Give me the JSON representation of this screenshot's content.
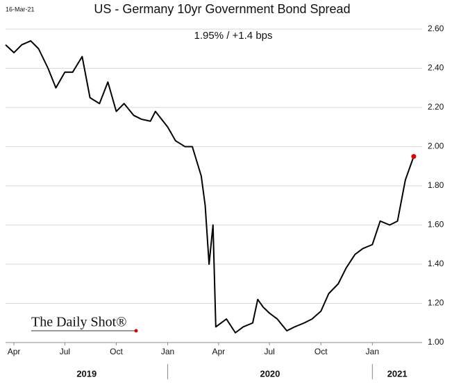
{
  "chart_data": {
    "type": "line",
    "date_stamp": "16-Mar-21",
    "title": "US - Germany 10yr Government Bond Spread",
    "subtitle": "1.95%  /  +1.4 bps",
    "watermark": "The Daily Shot®",
    "x": [
      "2019-03-17",
      "2019-04-01",
      "2019-04-15",
      "2019-05-01",
      "2019-05-15",
      "2019-06-01",
      "2019-06-15",
      "2019-07-01",
      "2019-07-15",
      "2019-08-01",
      "2019-08-15",
      "2019-09-01",
      "2019-09-16",
      "2019-10-01",
      "2019-10-15",
      "2019-11-01",
      "2019-11-15",
      "2019-12-01",
      "2019-12-10",
      "2020-01-01",
      "2020-01-15",
      "2020-02-01",
      "2020-02-14",
      "2020-03-01",
      "2020-03-08",
      "2020-03-15",
      "2020-03-22",
      "2020-03-27",
      "2020-04-15",
      "2020-05-01",
      "2020-05-15",
      "2020-06-01",
      "2020-06-10",
      "2020-06-20",
      "2020-07-01",
      "2020-07-15",
      "2020-08-01",
      "2020-08-15",
      "2020-09-01",
      "2020-09-15",
      "2020-10-01",
      "2020-10-15",
      "2020-11-01",
      "2020-11-15",
      "2020-12-01",
      "2020-12-15",
      "2021-01-01",
      "2021-01-15",
      "2021-02-01",
      "2021-02-15",
      "2021-03-01",
      "2021-03-16"
    ],
    "series": [
      {
        "name": "US - Germany 10yr spread",
        "color": "#000000",
        "values": [
          2.52,
          2.48,
          2.52,
          2.54,
          2.5,
          2.4,
          2.3,
          2.38,
          2.38,
          2.46,
          2.25,
          2.22,
          2.33,
          2.18,
          2.22,
          2.16,
          2.14,
          2.13,
          2.18,
          2.1,
          2.03,
          2.0,
          2.0,
          1.85,
          1.7,
          1.4,
          1.6,
          1.08,
          1.12,
          1.05,
          1.08,
          1.1,
          1.22,
          1.18,
          1.15,
          1.12,
          1.06,
          1.08,
          1.1,
          1.12,
          1.16,
          1.25,
          1.3,
          1.38,
          1.45,
          1.48,
          1.5,
          1.62,
          1.6,
          1.62,
          1.83,
          1.95
        ]
      }
    ],
    "last_point_color": "#e00000",
    "xlim": [
      "2019-03-17",
      "2021-03-31"
    ],
    "xticks": [
      {
        "value": "2019-04-01",
        "label": "Apr"
      },
      {
        "value": "2019-07-01",
        "label": "Jul"
      },
      {
        "value": "2019-10-01",
        "label": "Oct"
      },
      {
        "value": "2020-01-01",
        "label": "Jan"
      },
      {
        "value": "2020-04-01",
        "label": "Apr"
      },
      {
        "value": "2020-07-01",
        "label": "Jul"
      },
      {
        "value": "2020-10-01",
        "label": "Oct"
      },
      {
        "value": "2021-01-01",
        "label": "Jan"
      }
    ],
    "years": [
      "2019",
      "2020",
      "2021"
    ],
    "ylim": [
      1.0,
      2.6
    ],
    "yticks": [
      {
        "value": 1.0,
        "label": "1.00"
      },
      {
        "value": 1.2,
        "label": "1.20"
      },
      {
        "value": 1.4,
        "label": "1.40"
      },
      {
        "value": 1.6,
        "label": "1.60"
      },
      {
        "value": 1.8,
        "label": "1.80"
      },
      {
        "value": 2.0,
        "label": "2.00"
      },
      {
        "value": 2.2,
        "label": "2.20"
      },
      {
        "value": 2.4,
        "label": "2.40"
      },
      {
        "value": 2.6,
        "label": "2.60"
      }
    ],
    "grid": true
  }
}
